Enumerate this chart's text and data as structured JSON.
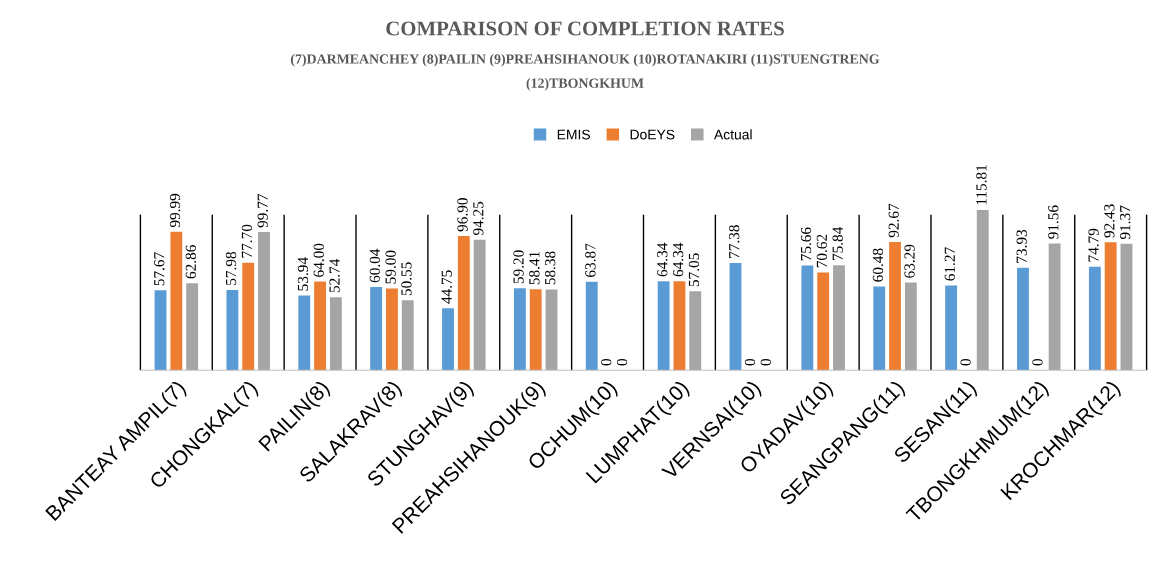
{
  "chart_data": {
    "type": "bar",
    "title": "COMPARISON OF COMPLETION RATES",
    "subtitle": "(7)DARMEANCHEY (8)PAILIN (9)PREAHSIHANOUK (10)ROTANAKIRI (11)STUENGTRENG\n(12)TBONGKHUM",
    "categories": [
      "BANTEAY AMPIL(7)",
      "CHONGKAL(7)",
      "PAILIN(8)",
      "SALAKRAV(8)",
      "STUNGHAV(9)",
      "PREAHSIHANOUK(9)",
      "OCHUM(10)",
      "LUMPHAT(10)",
      "VERNSAI(10)",
      "OYADAV(10)",
      "SEANGPANG(11)",
      "SESAN(11)",
      "TBONGKHMUM(12)",
      "KROCHMAR(12)"
    ],
    "series": [
      {
        "name": "EMIS",
        "color": "#5b9bd5",
        "values": [
          57.67,
          57.98,
          53.94,
          60.04,
          44.75,
          59.2,
          63.87,
          64.34,
          77.38,
          75.66,
          60.48,
          61.27,
          73.93,
          74.79
        ],
        "value_labels": [
          "57.67",
          "57.98",
          "53.94",
          "60.04",
          "44.75",
          "59.20",
          "63.87",
          "64.34",
          "77.38",
          "75.66",
          "60.48",
          "61.27",
          "73.93",
          "74.79"
        ]
      },
      {
        "name": "DoEYS",
        "color": "#ed7d31",
        "values": [
          99.99,
          77.7,
          64.0,
          59.0,
          96.9,
          58.41,
          0,
          64.34,
          0,
          70.62,
          92.67,
          0,
          0,
          92.43
        ],
        "value_labels": [
          "99.99",
          "77.70",
          "64.00",
          "59.00",
          "96.90",
          "58.41",
          "0",
          "64.34",
          "0",
          "70.62",
          "92.67",
          "0",
          "0",
          "92.43"
        ]
      },
      {
        "name": "Actual",
        "color": "#a5a5a5",
        "values": [
          62.86,
          99.77,
          52.74,
          50.55,
          94.25,
          58.38,
          0,
          57.05,
          0,
          75.84,
          63.29,
          115.81,
          91.56,
          91.37
        ],
        "value_labels": [
          "62.86",
          "99.77",
          "52.74",
          "50.55",
          "94.25",
          "58.38",
          "0",
          "57.05",
          "0",
          "75.84",
          "63.29",
          "115.81",
          "91.56",
          "91.37"
        ]
      }
    ],
    "legend": "top",
    "grid": false
  }
}
